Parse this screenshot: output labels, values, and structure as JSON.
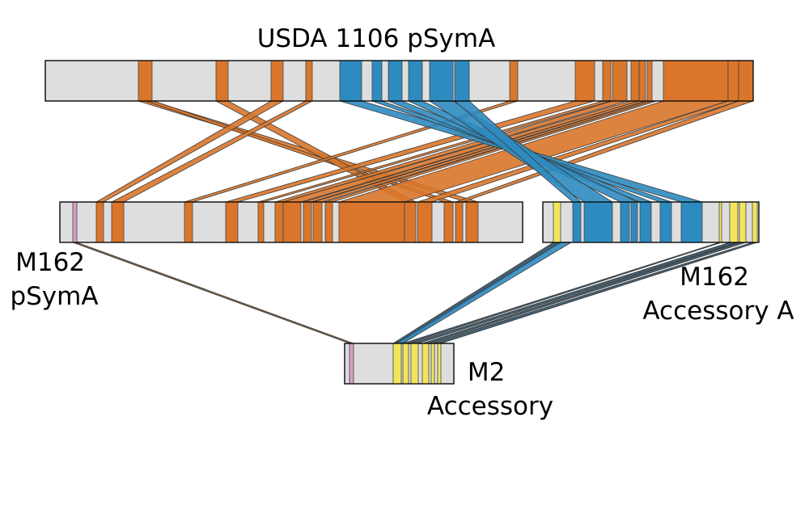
{
  "replicons": [
    {
      "id": "usda",
      "name": "USDA 1106 pSymA"
    },
    {
      "id": "m162p",
      "name": "M162 pSymA",
      "lines": [
        "M162",
        "pSymA"
      ]
    },
    {
      "id": "m162a",
      "name": "M162 Accessory A",
      "lines": [
        "M162",
        "Accessory A"
      ]
    },
    {
      "id": "m2",
      "name": "M2 Accessory",
      "lines": [
        "M2",
        "Accessory"
      ]
    }
  ],
  "colors": {
    "replicon_fill": "#dedede",
    "orange": "#d9762b",
    "blue": "#2e8bc0",
    "yellow": "#f2e55c",
    "pink": "#d69fc4",
    "brown": "#7a5231",
    "teal_dark": "#2f4f63"
  }
}
